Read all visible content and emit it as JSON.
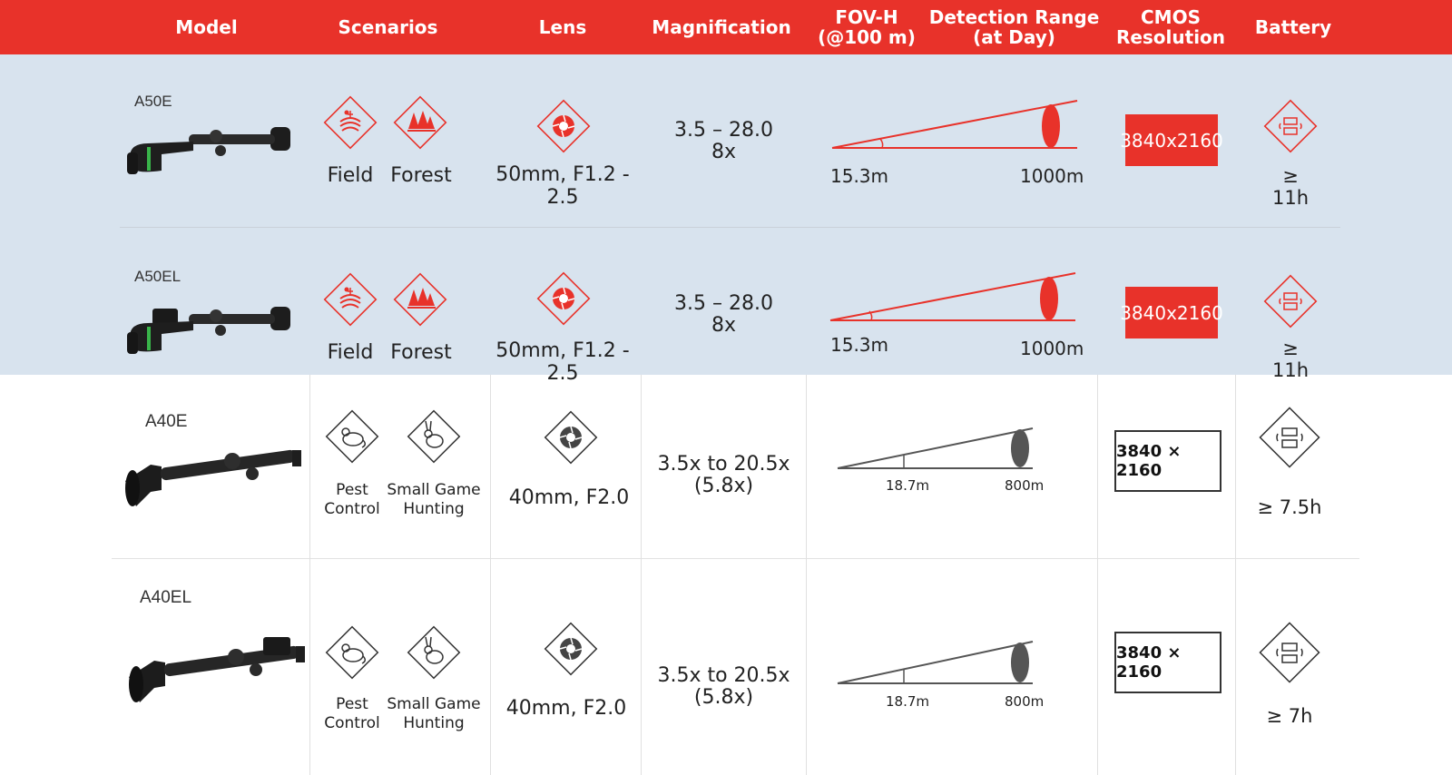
{
  "header": {
    "model": "Model",
    "scenarios": "Scenarios",
    "lens": "Lens",
    "magnification": "Magnification",
    "fov_line1": "FOV-H",
    "fov_line2": "(@100 m)",
    "detection_line1": "Detection Range",
    "detection_line2": "(at Day)",
    "cmos_line1": "CMOS",
    "cmos_line2": "Resolution",
    "battery": "Battery"
  },
  "rows": [
    {
      "model": "A50E",
      "scenario1": "Field",
      "scenario2": "Forest",
      "lens": "50mm, F1.2 - 2.5",
      "mag_line1": "3.5 – 28.0",
      "mag_line2": "8x",
      "fov": "15.3m",
      "detection": "1000m",
      "resolution": "3840x2160",
      "battery": "≥ 11h"
    },
    {
      "model": "A50EL",
      "scenario1": "Field",
      "scenario2": "Forest",
      "lens": "50mm, F1.2 - 2.5",
      "mag_line1": "3.5 – 28.0",
      "mag_line2": "8x",
      "fov": "15.3m",
      "detection": "1000m",
      "resolution": "3840x2160",
      "battery": "≥ 11h"
    },
    {
      "model": "A40E",
      "scenario1_line1": "Pest",
      "scenario1_line2": "Control",
      "scenario2_line1": "Small Game",
      "scenario2_line2": "Hunting",
      "lens": "40mm, F2.0",
      "mag_line1": "3.5x to 20.5x",
      "mag_line2": "(5.8x)",
      "fov": "18.7m",
      "detection": "800m",
      "resolution": "3840 × 2160",
      "battery": "≥ 7.5h"
    },
    {
      "model": "A40EL",
      "scenario1_line1": "Pest",
      "scenario1_line2": "Control",
      "scenario2_line1": "Small Game",
      "scenario2_line2": "Hunting",
      "lens": "40mm, F2.0",
      "mag_line1": "3.5x to 20.5x",
      "mag_line2": "(5.8x)",
      "fov": "18.7m",
      "detection": "800m",
      "resolution": "3840 × 2160",
      "battery": "≥ 7h"
    }
  ],
  "colors": {
    "accent": "#e8322a",
    "band": "#d8e3ee",
    "dark": "#333333"
  },
  "icons": [
    "field-icon",
    "forest-icon",
    "aperture-icon",
    "pest-icon",
    "rabbit-icon",
    "battery-swap-icon",
    "scope-image"
  ]
}
